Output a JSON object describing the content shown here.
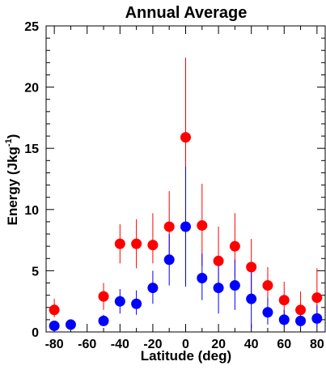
{
  "chart_data": {
    "type": "scatter",
    "title": "Annual Average",
    "xlabel": "Latitude (deg)",
    "ylabel_main": "Energy (Jkg",
    "ylabel_sup": "-1",
    "ylabel_close": ")",
    "xlim": [
      -85,
      85
    ],
    "ylim": [
      0,
      25
    ],
    "xticks": [
      -80,
      -60,
      -40,
      -20,
      0,
      20,
      40,
      60,
      80
    ],
    "yticks": [
      0,
      5,
      10,
      15,
      20,
      25
    ],
    "xtick_labels": [
      "-80",
      "-60",
      "-40",
      "-20",
      "0",
      "20",
      "40",
      "60",
      "80"
    ],
    "ytick_labels": [
      "0",
      "5",
      "10",
      "15",
      "20",
      "25"
    ],
    "grid": false,
    "series": [
      {
        "color": "#ff0000",
        "points": [
          {
            "x": -80,
            "y": 1.8,
            "lo": 1.2,
            "hi": 2.7
          },
          {
            "x": -50,
            "y": 2.9,
            "lo": 1.8,
            "hi": 4.0
          },
          {
            "x": -40,
            "y": 7.2,
            "lo": 5.6,
            "hi": 8.8
          },
          {
            "x": -30,
            "y": 7.2,
            "lo": 5.2,
            "hi": 9.2
          },
          {
            "x": -20,
            "y": 7.1,
            "lo": 5.6,
            "hi": 9.7
          },
          {
            "x": -10,
            "y": 8.6,
            "lo": 6.0,
            "hi": 11.5
          },
          {
            "x": 0,
            "y": 15.9,
            "lo": 9.4,
            "hi": 22.4
          },
          {
            "x": 10,
            "y": 8.7,
            "lo": 5.4,
            "hi": 12.1
          },
          {
            "x": 20,
            "y": 5.8,
            "lo": 3.3,
            "hi": 8.6
          },
          {
            "x": 30,
            "y": 7.0,
            "lo": 4.4,
            "hi": 9.7
          },
          {
            "x": 40,
            "y": 5.3,
            "lo": 3.0,
            "hi": 7.6
          },
          {
            "x": 50,
            "y": 3.8,
            "lo": 2.3,
            "hi": 5.3
          },
          {
            "x": 60,
            "y": 2.6,
            "lo": 1.3,
            "hi": 4.1
          },
          {
            "x": 70,
            "y": 1.8,
            "lo": 0.8,
            "hi": 3.3
          },
          {
            "x": 80,
            "y": 2.8,
            "lo": 1.5,
            "hi": 5.2
          }
        ]
      },
      {
        "color": "#0000ff",
        "points": [
          {
            "x": -80,
            "y": 0.5,
            "lo": 0.2,
            "hi": 0.9
          },
          {
            "x": -70,
            "y": 0.6,
            "lo": 0.3,
            "hi": 0.9
          },
          {
            "x": -50,
            "y": 0.9,
            "lo": 0.5,
            "hi": 1.4
          },
          {
            "x": -40,
            "y": 2.5,
            "lo": 1.5,
            "hi": 3.5
          },
          {
            "x": -30,
            "y": 2.3,
            "lo": 1.4,
            "hi": 3.4
          },
          {
            "x": -20,
            "y": 3.6,
            "lo": 2.3,
            "hi": 5.0
          },
          {
            "x": -10,
            "y": 5.9,
            "lo": 3.8,
            "hi": 8.0
          },
          {
            "x": 0,
            "y": 8.6,
            "lo": 3.7,
            "hi": 13.5
          },
          {
            "x": 10,
            "y": 4.4,
            "lo": 2.6,
            "hi": 6.4
          },
          {
            "x": 20,
            "y": 3.6,
            "lo": 1.5,
            "hi": 5.8
          },
          {
            "x": 30,
            "y": 3.8,
            "lo": 1.8,
            "hi": 5.9
          },
          {
            "x": 40,
            "y": 2.7,
            "lo": 0.3,
            "hi": 4.9
          },
          {
            "x": 50,
            "y": 1.6,
            "lo": 0.6,
            "hi": 2.8
          },
          {
            "x": 60,
            "y": 1.0,
            "lo": 0.4,
            "hi": 1.8
          },
          {
            "x": 70,
            "y": 0.9,
            "lo": 0.3,
            "hi": 1.6
          },
          {
            "x": 80,
            "y": 1.1,
            "lo": 0.4,
            "hi": 2.2
          }
        ]
      }
    ]
  }
}
